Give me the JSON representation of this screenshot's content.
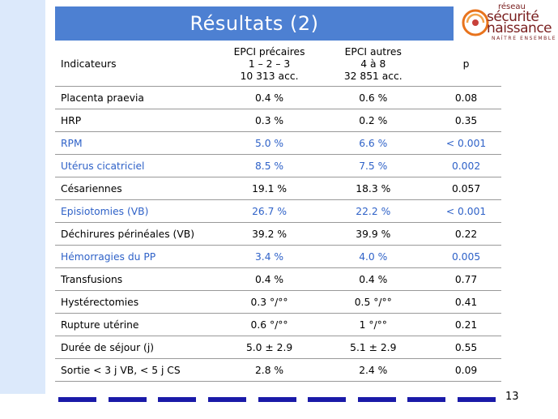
{
  "slide": {
    "title": "Résultats (2)",
    "page_number": "13"
  },
  "logo": {
    "line1": "réseau",
    "line2": "sécurité",
    "line3": "naissance",
    "tagline": "NAÎTRE ENSEMBLE"
  },
  "table": {
    "headers": {
      "indicator": "Indicateurs",
      "group1": [
        "EPCI précaires",
        "1 – 2 – 3",
        "10 313 acc."
      ],
      "group2": [
        "EPCI autres",
        "4 à 8",
        "32 851 acc."
      ],
      "p": "p"
    },
    "rows": [
      {
        "label": "Placenta praevia",
        "v1": "0.4 %",
        "v2": "0.6 %",
        "p": "0.08",
        "highlight": false
      },
      {
        "label": "HRP",
        "v1": "0.3 %",
        "v2": "0.2 %",
        "p": "0.35",
        "highlight": false
      },
      {
        "label": "RPM",
        "v1": "5.0 %",
        "v2": "6.6 %",
        "p": "< 0.001",
        "highlight": true
      },
      {
        "label": "Utérus cicatriciel",
        "v1": "8.5 %",
        "v2": "7.5 %",
        "p": "0.002",
        "highlight": true
      },
      {
        "label": "Césariennes",
        "v1": "19.1 %",
        "v2": "18.3 %",
        "p": "0.057",
        "highlight": false
      },
      {
        "label": "Episiotomies  (VB)",
        "v1": "26.7 %",
        "v2": "22.2 %",
        "p": "< 0.001",
        "highlight": true
      },
      {
        "label": "Déchirures périnéales (VB)",
        "v1": "39.2 %",
        "v2": "39.9 %",
        "p": "0.22",
        "highlight": false
      },
      {
        "label": "Hémorragies du PP",
        "v1": "3.4 %",
        "v2": "4.0 %",
        "p": "0.005",
        "highlight": true
      },
      {
        "label": "Transfusions",
        "v1": "0.4 %",
        "v2": "0.4 %",
        "p": "0.77",
        "highlight": false
      },
      {
        "label": "Hystérectomies",
        "v1": "0.3 °/°°",
        "v2": "0.5 °/°°",
        "p": "0.41",
        "highlight": false
      },
      {
        "label": "Rupture utérine",
        "v1": "0.6 °/°°",
        "v2": "1 °/°°",
        "p": "0.21",
        "highlight": false
      },
      {
        "label": "Durée de séjour (j)",
        "v1": "5.0 ± 2.9",
        "v2": "5.1 ± 2.9",
        "p": "0.55",
        "highlight": false
      },
      {
        "label": "Sortie < 3 j VB, < 5 j CS",
        "v1": "2.8 %",
        "v2": "2.4 %",
        "p": "0.09",
        "highlight": false
      }
    ]
  },
  "colors": {
    "title_bar": "#4d80d2",
    "highlight_text": "#2f62c8",
    "dash": "#1a1aa8",
    "left_bar": "#dce9fb"
  }
}
